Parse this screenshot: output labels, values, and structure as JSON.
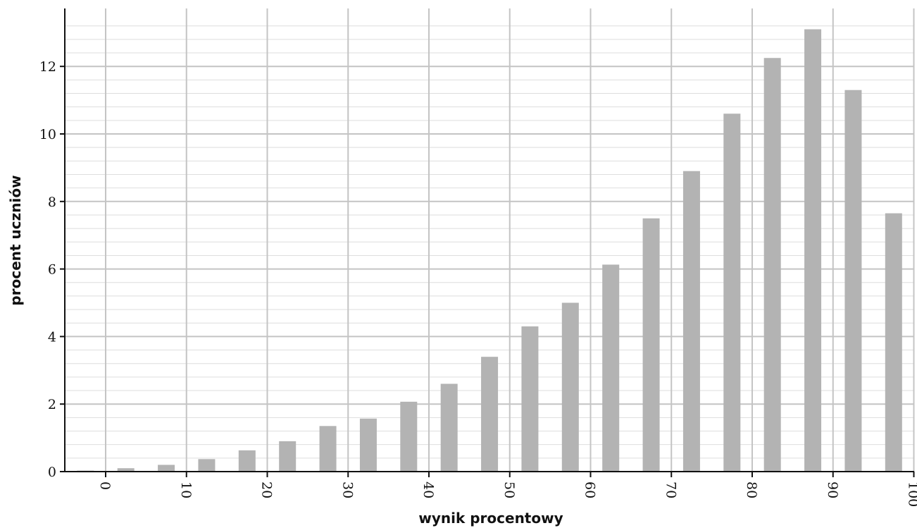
{
  "chart_data": {
    "type": "bar",
    "title": "",
    "xlabel": "wynik procentowy",
    "ylabel": "procent uczniów",
    "bar_color": "#b3b3b3",
    "grid": true,
    "xlim": [
      -5,
      100
    ],
    "ylim": [
      0,
      13.5
    ],
    "x_ticks": [
      0,
      10,
      20,
      30,
      40,
      50,
      60,
      70,
      80,
      90,
      100
    ],
    "y_ticks": [
      0,
      2,
      4,
      6,
      8,
      10,
      12
    ],
    "x": [
      -2.5,
      2.5,
      7.5,
      12.5,
      17.5,
      22.5,
      27.5,
      32.5,
      37.5,
      42.5,
      47.5,
      52.5,
      57.5,
      62.5,
      67.5,
      72.5,
      77.5,
      82.5,
      87.5,
      92.5,
      97.5
    ],
    "values": [
      0.03,
      0.1,
      0.2,
      0.37,
      0.63,
      0.9,
      1.35,
      1.57,
      2.07,
      2.6,
      3.4,
      4.3,
      5.0,
      6.13,
      7.5,
      8.9,
      10.6,
      12.25,
      13.1,
      11.3,
      7.65
    ]
  }
}
